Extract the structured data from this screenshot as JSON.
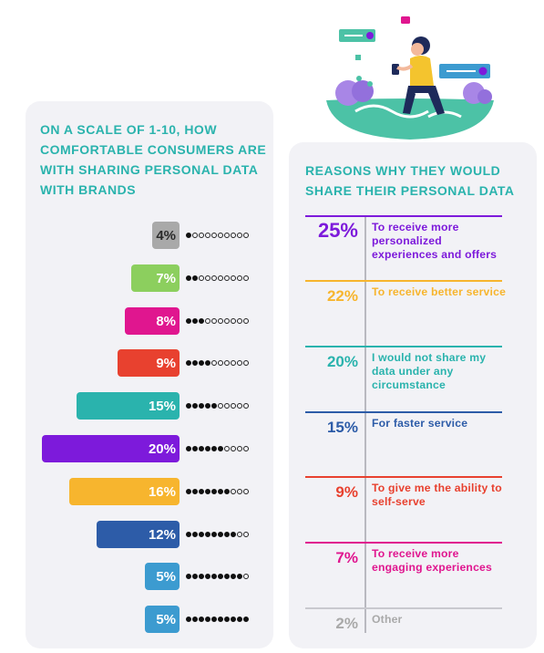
{
  "left_panel": {
    "title": "ON A SCALE OF 1-10, HOW COMFORTABLE CONSUMERS ARE WITH SHARING PERSONAL DATA WITH BRANDS"
  },
  "right_panel": {
    "title": "REASONS WHY THEY WOULD SHARE THEIR PERSONAL DATA"
  },
  "chart_data": [
    {
      "type": "bar",
      "orientation": "horizontal",
      "title": "ON A SCALE OF 1-10, HOW COMFORTABLE CONSUMERS ARE WITH SHARING PERSONAL DATA WITH BRANDS",
      "categories": [
        1,
        2,
        3,
        4,
        5,
        6,
        7,
        8,
        9,
        10
      ],
      "values": [
        4,
        7,
        8,
        9,
        15,
        20,
        16,
        12,
        5,
        5
      ],
      "labels": [
        "4%",
        "7%",
        "8%",
        "9%",
        "15%",
        "20%",
        "16%",
        "12%",
        "5%",
        "5%"
      ],
      "colors": [
        "#a9a9a9",
        "#8ccf5e",
        "#e0168f",
        "#e8412f",
        "#2ab3ad",
        "#7d1adb",
        "#f7b52e",
        "#2d5ca8",
        "#3c9bd0",
        "#3c9bd0"
      ],
      "scale_max": 10
    },
    {
      "type": "table",
      "title": "REASONS WHY THEY WOULD SHARE THEIR PERSONAL DATA",
      "rows": [
        {
          "value": 25,
          "label": "25%",
          "text": "To receive more personalized experiences and offers",
          "color": "#7d1adb"
        },
        {
          "value": 22,
          "label": "22%",
          "text": "To receive better service",
          "color": "#f7b52e"
        },
        {
          "value": 20,
          "label": "20%",
          "text": "I would not share my data under any circumstance",
          "color": "#2ab3ad"
        },
        {
          "value": 15,
          "label": "15%",
          "text": "For faster service",
          "color": "#2d5ca8"
        },
        {
          "value": 9,
          "label": "9%",
          "text": "To give me the ability to self-serve",
          "color": "#e8412f"
        },
        {
          "value": 7,
          "label": "7%",
          "text": "To receive more engaging experiences",
          "color": "#e0168f"
        },
        {
          "value": 2,
          "label": "2%",
          "text": "Other",
          "color": "#a9a9a9"
        }
      ]
    }
  ]
}
